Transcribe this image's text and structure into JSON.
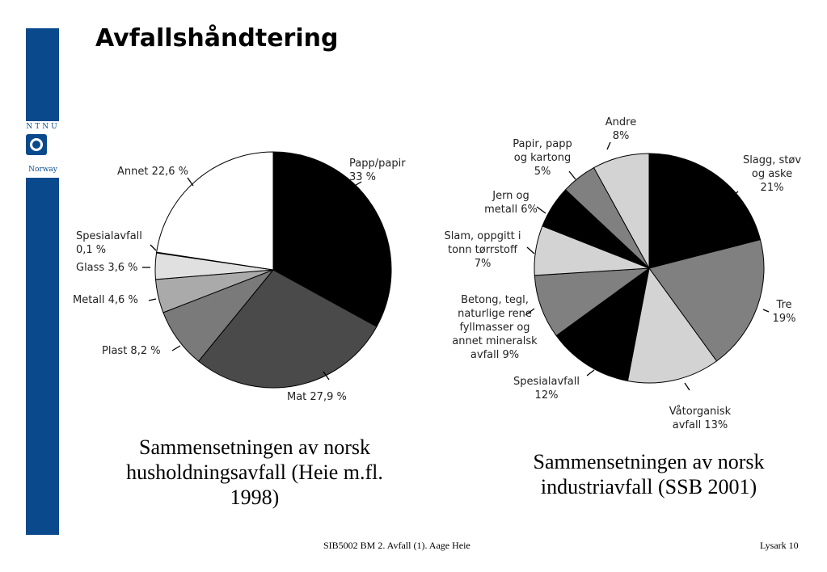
{
  "slide": {
    "title": "Avfallshåndtering",
    "logo": {
      "top_text": "NTNU",
      "bottom_text": "Norway"
    },
    "captions": [
      "Sammensetningen av norsk husholdningsavfall (Heie m.fl. 1998)",
      "Sammensetningen av norsk industriavfall (SSB 2001)"
    ],
    "footer": {
      "left": "SIB5002 BM 2. Avfall (1). Aage Heie",
      "right": "Lysark 10"
    }
  },
  "chart_data": [
    {
      "type": "pie",
      "title": "",
      "slices": [
        {
          "label_lines": [
            "Papp/papir",
            "33 %"
          ],
          "value": 33.0,
          "color": "#000000"
        },
        {
          "label_lines": [
            "Mat 27,9 %"
          ],
          "value": 27.9,
          "color": "#4a4a4a"
        },
        {
          "label_lines": [
            "Plast 8,2 %"
          ],
          "value": 8.2,
          "color": "#7a7a7a"
        },
        {
          "label_lines": [
            "Metall 4,6 %"
          ],
          "value": 4.6,
          "color": "#aaaaaa"
        },
        {
          "label_lines": [
            "Glass 3,6 %"
          ],
          "value": 3.6,
          "color": "#e0e0e0"
        },
        {
          "label_lines": [
            "Spesialavfall",
            "0,1 %"
          ],
          "value": 0.1,
          "color": "#555555"
        },
        {
          "label_lines": [
            "Annet 22,6 %"
          ],
          "value": 22.6,
          "color": "#ffffff"
        }
      ]
    },
    {
      "type": "pie",
      "title": "",
      "slices": [
        {
          "label_lines": [
            "Slagg, støv",
            "og aske",
            "21%"
          ],
          "value": 21,
          "color": "#000000"
        },
        {
          "label_lines": [
            "Tre",
            "19%"
          ],
          "value": 19,
          "color": "#808080"
        },
        {
          "label_lines": [
            "Våtorganisk",
            "avfall 13%"
          ],
          "value": 13,
          "color": "#d3d3d3"
        },
        {
          "label_lines": [
            "Spesialavfall",
            "12%"
          ],
          "value": 12,
          "color": "#000000"
        },
        {
          "label_lines": [
            "Betong, tegl,",
            "naturlige rene",
            "fyllmasser og",
            "annet mineralsk",
            "avfall 9%"
          ],
          "value": 9,
          "color": "#808080"
        },
        {
          "label_lines": [
            "Slam, oppgitt i",
            "tonn tørrstoff",
            "7%"
          ],
          "value": 7,
          "color": "#d3d3d3"
        },
        {
          "label_lines": [
            "Jern og",
            "metall 6%"
          ],
          "value": 6,
          "color": "#000000"
        },
        {
          "label_lines": [
            "Papir, papp",
            "og kartong",
            "5%"
          ],
          "value": 5,
          "color": "#808080"
        },
        {
          "label_lines": [
            "Andre",
            "8%"
          ],
          "value": 8,
          "color": "#d3d3d3"
        }
      ]
    }
  ]
}
